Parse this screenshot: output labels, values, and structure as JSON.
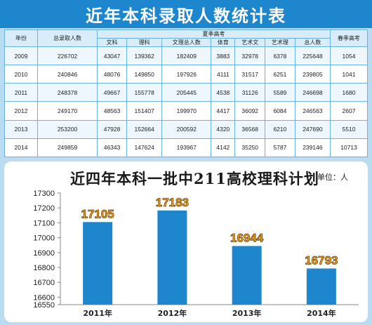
{
  "header": {
    "title": "近年本科录取人数统计表"
  },
  "table": {
    "col_year": "年份",
    "col_total": "总录取人数",
    "group_summer": "夏季高考",
    "col_spring": "春季高考",
    "sub_headers": [
      "文科",
      "理科",
      "文理总人数",
      "体育",
      "艺术文",
      "艺术理",
      "总人数"
    ],
    "rows": [
      [
        "2009",
        "226702",
        "43047",
        "139362",
        "182409",
        "3883",
        "32978",
        "6378",
        "225648",
        "1054"
      ],
      [
        "2010",
        "240846",
        "48076",
        "149850",
        "197926",
        "4111",
        "31517",
        "6251",
        "239805",
        "1041"
      ],
      [
        "2011",
        "248378",
        "49667",
        "155778",
        "205445",
        "4538",
        "31126",
        "5589",
        "246698",
        "1680"
      ],
      [
        "2012",
        "249170",
        "48563",
        "151407",
        "199970",
        "4417",
        "36092",
        "6084",
        "246563",
        "2607"
      ],
      [
        "2013",
        "253200",
        "47928",
        "152664",
        "200592",
        "4320",
        "36568",
        "6210",
        "247690",
        "5510"
      ],
      [
        "2014",
        "249859",
        "46343",
        "147624",
        "193967",
        "4142",
        "35250",
        "5787",
        "239146",
        "10713"
      ]
    ]
  },
  "chart_unit": "单位：人",
  "colors": {
    "bar": "#1e86cc",
    "label_fill": "#f7a81b",
    "banner": "#1e86cc"
  },
  "chart_data": {
    "type": "bar",
    "title": "近四年本科一批中211高校理科计划",
    "categories": [
      "2011年",
      "2012年",
      "2013年",
      "2014年"
    ],
    "values": [
      17105,
      17183,
      16944,
      16793
    ],
    "ylim": [
      16550,
      17300
    ],
    "yticks": [
      16550,
      16600,
      16700,
      16800,
      16900,
      17000,
      17100,
      17200,
      17300
    ],
    "xlabel": "",
    "ylabel": "",
    "grid": false
  }
}
